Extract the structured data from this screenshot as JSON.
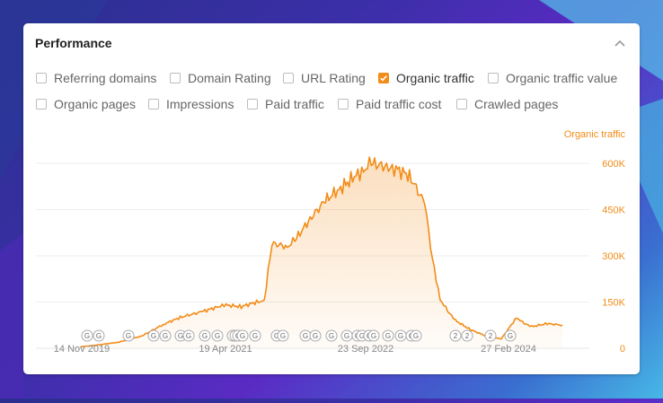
{
  "panel": {
    "title": "Performance",
    "collapse_icon": "chevron-up-icon"
  },
  "metrics": [
    {
      "label": "Referring domains",
      "checked": false
    },
    {
      "label": "Domain Rating",
      "checked": false
    },
    {
      "label": "URL Rating",
      "checked": false
    },
    {
      "label": "Organic traffic",
      "checked": true
    },
    {
      "label": "Organic traffic value",
      "checked": false
    },
    {
      "label": "Organic pages",
      "checked": false
    },
    {
      "label": "Impressions",
      "checked": false
    },
    {
      "label": "Paid traffic",
      "checked": false
    },
    {
      "label": "Paid traffic cost",
      "checked": false
    },
    {
      "label": "Crawled pages",
      "checked": false
    }
  ],
  "colors": {
    "accent": "#f28c18",
    "grid": "#eeeeee",
    "fill": "#fde6d0"
  },
  "chart_data": {
    "type": "area",
    "series_label": "Organic traffic",
    "y_ticks": [
      "0",
      "150K",
      "300K",
      "450K",
      "600K"
    ],
    "ylim": [
      0,
      600000
    ],
    "x_ticks": [
      "14 Nov 2019",
      "19 Apr 2021",
      "23 Sep 2022",
      "27 Feb 2024"
    ],
    "x": [
      "2019-09",
      "2019-11",
      "2020-02",
      "2020-05",
      "2020-08",
      "2020-10",
      "2021-01",
      "2021-03",
      "2021-04",
      "2021-06",
      "2021-08",
      "2021-09",
      "2021-10",
      "2021-12",
      "2022-01",
      "2022-03",
      "2022-05",
      "2022-07",
      "2022-09",
      "2022-10",
      "2022-11",
      "2023-01",
      "2023-02",
      "2023-04",
      "2023-06",
      "2023-07",
      "2023-08",
      "2023-09",
      "2023-10",
      "2023-12",
      "2024-02",
      "2024-04",
      "2024-06",
      "2024-07",
      "2024-08",
      "2024-10",
      "2024-12"
    ],
    "values": [
      5000,
      10000,
      20000,
      40000,
      80000,
      100000,
      120000,
      135000,
      140000,
      135000,
      150000,
      155000,
      340000,
      330000,
      350000,
      420000,
      480000,
      520000,
      560000,
      580000,
      600000,
      590000,
      585000,
      560000,
      470000,
      290000,
      160000,
      120000,
      90000,
      60000,
      40000,
      30000,
      100000,
      80000,
      70000,
      80000,
      75000
    ],
    "event_markers": [
      "G",
      "G",
      "G",
      "G",
      "G",
      "G",
      "G",
      "G",
      "G",
      "G",
      "G",
      "G",
      "G",
      "G",
      "G",
      "G",
      "G",
      "G",
      "G",
      "G",
      "G",
      "G",
      "G",
      "G",
      "G",
      "G",
      "G",
      "G",
      "2",
      "2",
      "2",
      "G"
    ]
  }
}
